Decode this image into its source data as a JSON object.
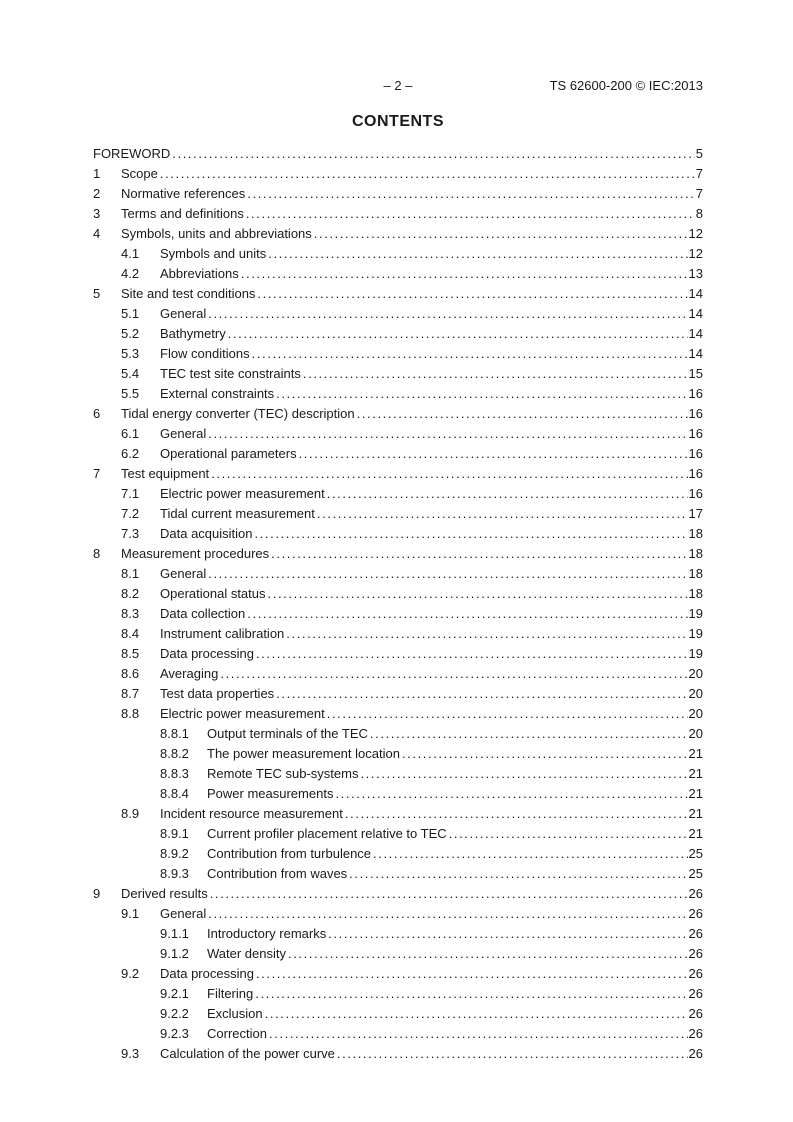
{
  "header": {
    "page_marker": "– 2 –",
    "doc_ref": "TS 62600-200 © IEC:2013"
  },
  "title": "CONTENTS",
  "toc": {
    "entries": [
      {
        "num": "",
        "label": "FOREWORD",
        "page": "5",
        "level": 0
      },
      {
        "num": "1",
        "label": "Scope",
        "page": "7",
        "level": 1
      },
      {
        "num": "2",
        "label": "Normative references",
        "page": "7",
        "level": 1
      },
      {
        "num": "3",
        "label": "Terms and definitions",
        "page": "8",
        "level": 1
      },
      {
        "num": "4",
        "label": "Symbols, units and abbreviations",
        "page": "12",
        "level": 1
      },
      {
        "num": "4.1",
        "label": "Symbols and units",
        "page": "12",
        "level": 2
      },
      {
        "num": "4.2",
        "label": "Abbreviations",
        "page": "13",
        "level": 2
      },
      {
        "num": "5",
        "label": "Site and test conditions",
        "page": "14",
        "level": 1
      },
      {
        "num": "5.1",
        "label": "General",
        "page": "14",
        "level": 2
      },
      {
        "num": "5.2",
        "label": "Bathymetry",
        "page": "14",
        "level": 2
      },
      {
        "num": "5.3",
        "label": "Flow conditions",
        "page": "14",
        "level": 2
      },
      {
        "num": "5.4",
        "label": "TEC test site constraints",
        "page": "15",
        "level": 2
      },
      {
        "num": "5.5",
        "label": "External constraints",
        "page": "16",
        "level": 2
      },
      {
        "num": "6",
        "label": "Tidal energy converter (TEC) description",
        "page": "16",
        "level": 1
      },
      {
        "num": "6.1",
        "label": "General",
        "page": "16",
        "level": 2
      },
      {
        "num": "6.2",
        "label": "Operational parameters",
        "page": "16",
        "level": 2
      },
      {
        "num": "7",
        "label": "Test equipment",
        "page": "16",
        "level": 1
      },
      {
        "num": "7.1",
        "label": "Electric power measurement",
        "page": "16",
        "level": 2
      },
      {
        "num": "7.2",
        "label": "Tidal current measurement",
        "page": "17",
        "level": 2
      },
      {
        "num": "7.3",
        "label": "Data acquisition",
        "page": "18",
        "level": 2
      },
      {
        "num": "8",
        "label": "Measurement procedures",
        "page": "18",
        "level": 1
      },
      {
        "num": "8.1",
        "label": "General",
        "page": "18",
        "level": 2
      },
      {
        "num": "8.2",
        "label": "Operational status",
        "page": "18",
        "level": 2
      },
      {
        "num": "8.3",
        "label": "Data collection",
        "page": "19",
        "level": 2
      },
      {
        "num": "8.4",
        "label": "Instrument calibration",
        "page": "19",
        "level": 2
      },
      {
        "num": "8.5",
        "label": "Data processing",
        "page": "19",
        "level": 2
      },
      {
        "num": "8.6",
        "label": "Averaging",
        "page": "20",
        "level": 2
      },
      {
        "num": "8.7",
        "label": "Test data properties",
        "page": "20",
        "level": 2
      },
      {
        "num": "8.8",
        "label": "Electric power measurement",
        "page": "20",
        "level": 2
      },
      {
        "num": "8.8.1",
        "label": "Output terminals of the TEC",
        "page": "20",
        "level": 3
      },
      {
        "num": "8.8.2",
        "label": "The power measurement location",
        "page": "21",
        "level": 3
      },
      {
        "num": "8.8.3",
        "label": "Remote TEC sub-systems",
        "page": "21",
        "level": 3
      },
      {
        "num": "8.8.4",
        "label": "Power measurements",
        "page": "21",
        "level": 3
      },
      {
        "num": "8.9",
        "label": "Incident resource measurement",
        "page": "21",
        "level": 2
      },
      {
        "num": "8.9.1",
        "label": "Current profiler placement relative to TEC",
        "page": "21",
        "level": 3
      },
      {
        "num": "8.9.2",
        "label": "Contribution from turbulence",
        "page": "25",
        "level": 3
      },
      {
        "num": "8.9.3",
        "label": "Contribution from waves",
        "page": "25",
        "level": 3
      },
      {
        "num": "9",
        "label": "Derived results",
        "page": "26",
        "level": 1
      },
      {
        "num": "9.1",
        "label": "General",
        "page": "26",
        "level": 2
      },
      {
        "num": "9.1.1",
        "label": "Introductory remarks",
        "page": "26",
        "level": 3
      },
      {
        "num": "9.1.2",
        "label": "Water density",
        "page": "26",
        "level": 3
      },
      {
        "num": "9.2",
        "label": "Data processing",
        "page": "26",
        "level": 2
      },
      {
        "num": "9.2.1",
        "label": "Filtering",
        "page": "26",
        "level": 3
      },
      {
        "num": "9.2.2",
        "label": "Exclusion",
        "page": "26",
        "level": 3
      },
      {
        "num": "9.2.3",
        "label": "Correction",
        "page": "26",
        "level": 3
      },
      {
        "num": "9.3",
        "label": "Calculation of the power curve",
        "page": "26",
        "level": 2
      }
    ]
  }
}
